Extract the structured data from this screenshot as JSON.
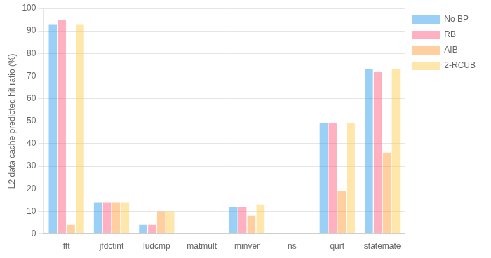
{
  "chart_data": {
    "type": "bar",
    "categories": [
      "fft",
      "jfdctint",
      "ludcmp",
      "matmult",
      "minver",
      "ns",
      "qurt",
      "statemate"
    ],
    "series": [
      {
        "name": "No BP",
        "values": [
          93,
          14,
          4,
          0,
          12,
          0,
          49,
          73
        ]
      },
      {
        "name": "RB",
        "values": [
          95,
          14,
          4,
          0,
          12,
          0,
          49,
          72
        ]
      },
      {
        "name": "AIB",
        "values": [
          4,
          14,
          10,
          0,
          8,
          0,
          19,
          36
        ]
      },
      {
        "name": "2-RCUB",
        "values": [
          93,
          14,
          10,
          0,
          13,
          0,
          49,
          73
        ]
      }
    ],
    "y_label": "L2 data cache predicted hit ratio (%)",
    "ylim": [
      0,
      100
    ],
    "yticks": [
      0,
      10,
      20,
      30,
      40,
      50,
      60,
      70,
      80,
      90,
      100
    ],
    "grid": true,
    "legend": "right"
  }
}
